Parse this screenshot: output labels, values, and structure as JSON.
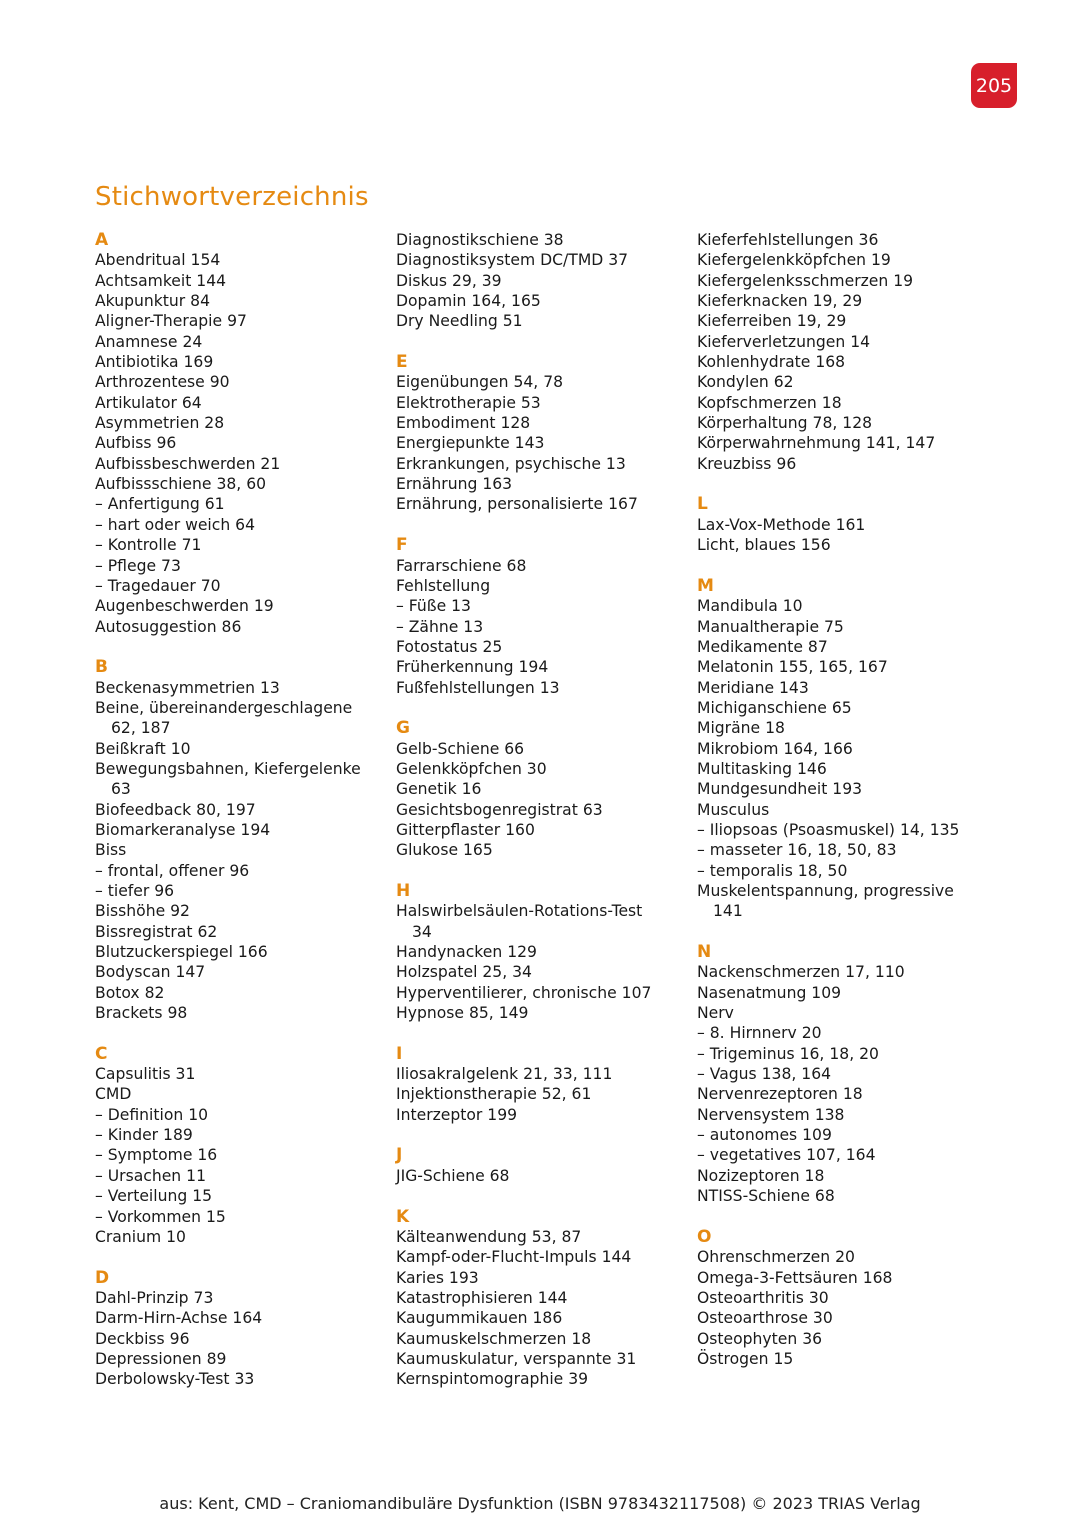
{
  "page_number": "205",
  "title": "Stichwortverzeichnis",
  "colors": {
    "accent": "#e58a12",
    "badge": "#d71f2b"
  },
  "columns": [
    [
      {
        "letter": "A",
        "entries": [
          {
            "t": "Abendritual 154"
          },
          {
            "t": "Achtsamkeit 144"
          },
          {
            "t": "Akupunktur 84"
          },
          {
            "t": "Aligner-Therapie 97"
          },
          {
            "t": "Anamnese 24"
          },
          {
            "t": "Antibiotika 169"
          },
          {
            "t": "Arthrozentese 90"
          },
          {
            "t": "Artikulator 64"
          },
          {
            "t": "Asymmetrien 28"
          },
          {
            "t": "Aufbiss 96"
          },
          {
            "t": "Aufbissbeschwerden 21"
          },
          {
            "t": "Aufbissschiene 38, 60"
          },
          {
            "t": "– Anfertigung 61"
          },
          {
            "t": "– hart oder weich 64"
          },
          {
            "t": "– Kontrolle 71"
          },
          {
            "t": "– Pflege 73"
          },
          {
            "t": "– Tragedauer 70"
          },
          {
            "t": "Augenbeschwerden 19"
          },
          {
            "t": "Autosuggestion 86"
          }
        ]
      },
      {
        "letter": "B",
        "entries": [
          {
            "t": "Beckenasymmetrien 13"
          },
          {
            "t": "Beine, übereinandergeschlagene"
          },
          {
            "t": "62, 187",
            "c": true
          },
          {
            "t": "Beißkraft 10"
          },
          {
            "t": "Bewegungsbahnen, Kiefergelenke"
          },
          {
            "t": "63",
            "c": true
          },
          {
            "t": "Biofeedback 80, 197"
          },
          {
            "t": "Biomarkeranalyse 194"
          },
          {
            "t": "Biss"
          },
          {
            "t": "– frontal, offener 96"
          },
          {
            "t": "– tiefer 96"
          },
          {
            "t": "Bisshöhe 92"
          },
          {
            "t": "Bissregistrat 62"
          },
          {
            "t": "Blutzuckerspiegel 166"
          },
          {
            "t": "Bodyscan 147"
          },
          {
            "t": "Botox 82"
          },
          {
            "t": "Brackets 98"
          }
        ]
      },
      {
        "letter": "C",
        "entries": [
          {
            "t": "Capsulitis 31"
          },
          {
            "t": "CMD"
          },
          {
            "t": "– Definition 10"
          },
          {
            "t": "– Kinder 189"
          },
          {
            "t": "– Symptome 16"
          },
          {
            "t": "– Ursachen 11"
          },
          {
            "t": "– Verteilung 15"
          },
          {
            "t": "– Vorkommen 15"
          },
          {
            "t": "Cranium 10"
          }
        ]
      },
      {
        "letter": "D",
        "entries": [
          {
            "t": "Dahl-Prinzip 73"
          },
          {
            "t": "Darm-Hirn-Achse 164"
          },
          {
            "t": "Deckbiss 96"
          },
          {
            "t": "Depressionen 89"
          },
          {
            "t": "Derbolowsky-Test 33"
          }
        ]
      }
    ],
    [
      {
        "letter": null,
        "entries": [
          {
            "t": "Diagnostikschiene 38"
          },
          {
            "t": "Diagnostiksystem DC/TMD 37"
          },
          {
            "t": "Diskus 29, 39"
          },
          {
            "t": "Dopamin 164, 165"
          },
          {
            "t": "Dry Needling 51"
          }
        ]
      },
      {
        "letter": "E",
        "entries": [
          {
            "t": "Eigenübungen 54, 78"
          },
          {
            "t": "Elektrotherapie 53"
          },
          {
            "t": "Embodiment 128"
          },
          {
            "t": "Energiepunkte 143"
          },
          {
            "t": "Erkrankungen, psychische 13"
          },
          {
            "t": "Ernährung 163"
          },
          {
            "t": "Ernährung, personalisierte 167"
          }
        ]
      },
      {
        "letter": "F",
        "entries": [
          {
            "t": "Farrarschiene 68"
          },
          {
            "t": "Fehlstellung"
          },
          {
            "t": "– Füße 13"
          },
          {
            "t": "– Zähne 13"
          },
          {
            "t": "Fotostatus 25"
          },
          {
            "t": "Früherkennung 194"
          },
          {
            "t": "Fußfehlstellungen 13"
          }
        ]
      },
      {
        "letter": "G",
        "entries": [
          {
            "t": "Gelb-Schiene 66"
          },
          {
            "t": "Gelenkköpfchen 30"
          },
          {
            "t": "Genetik 16"
          },
          {
            "t": "Gesichtsbogenregistrat 63"
          },
          {
            "t": "Gitterpflaster 160"
          },
          {
            "t": "Glukose 165"
          }
        ]
      },
      {
        "letter": "H",
        "entries": [
          {
            "t": "Halswirbelsäulen-Rotations-Test"
          },
          {
            "t": "34",
            "c": true
          },
          {
            "t": "Handynacken 129"
          },
          {
            "t": "Holzspatel 25, 34"
          },
          {
            "t": "Hyperventilierer, chronische 107"
          },
          {
            "t": "Hypnose 85, 149"
          }
        ]
      },
      {
        "letter": "I",
        "entries": [
          {
            "t": "Iliosakralgelenk 21, 33, 111"
          },
          {
            "t": "Injektionstherapie 52, 61"
          },
          {
            "t": "Interzeptor 199"
          }
        ]
      },
      {
        "letter": "J",
        "entries": [
          {
            "t": "JIG-Schiene 68"
          }
        ]
      },
      {
        "letter": "K",
        "entries": [
          {
            "t": "Kälteanwendung 53, 87"
          },
          {
            "t": "Kampf-oder-Flucht-Impuls 144"
          },
          {
            "t": "Karies 193"
          },
          {
            "t": "Katastrophisieren 144"
          },
          {
            "t": "Kaugummikauen 186"
          },
          {
            "t": "Kaumuskelschmerzen 18"
          },
          {
            "t": "Kaumuskulatur, verspannte 31"
          },
          {
            "t": "Kernspintomographie 39"
          }
        ]
      }
    ],
    [
      {
        "letter": null,
        "entries": [
          {
            "t": "Kieferfehlstellungen 36"
          },
          {
            "t": "Kiefergelenkköpfchen 19"
          },
          {
            "t": "Kiefergelenksschmerzen 19"
          },
          {
            "t": "Kieferknacken 19, 29"
          },
          {
            "t": "Kieferreiben 19, 29"
          },
          {
            "t": "Kieferverletzungen 14"
          },
          {
            "t": "Kohlenhydrate 168"
          },
          {
            "t": "Kondylen 62"
          },
          {
            "t": "Kopfschmerzen 18"
          },
          {
            "t": "Körperhaltung 78, 128"
          },
          {
            "t": "Körperwahrnehmung 141, 147"
          },
          {
            "t": "Kreuzbiss 96"
          }
        ]
      },
      {
        "letter": "L",
        "entries": [
          {
            "t": "Lax-Vox-Methode 161"
          },
          {
            "t": "Licht, blaues 156"
          }
        ]
      },
      {
        "letter": "M",
        "entries": [
          {
            "t": "Mandibula 10"
          },
          {
            "t": "Manualtherapie 75"
          },
          {
            "t": "Medikamente 87"
          },
          {
            "t": "Melatonin 155, 165, 167"
          },
          {
            "t": "Meridiane 143"
          },
          {
            "t": "Michiganschiene 65"
          },
          {
            "t": "Migräne 18"
          },
          {
            "t": "Mikrobiom 164, 166"
          },
          {
            "t": "Multitasking 146"
          },
          {
            "t": "Mundgesundheit 193"
          },
          {
            "t": "Musculus"
          },
          {
            "t": "– Iliopsoas (Psoasmuskel) 14, 135"
          },
          {
            "t": "– masseter 16, 18, 50, 83"
          },
          {
            "t": "– temporalis 18, 50"
          },
          {
            "t": "Muskelentspannung, progressive"
          },
          {
            "t": "141",
            "c": true
          }
        ]
      },
      {
        "letter": "N",
        "entries": [
          {
            "t": "Nackenschmerzen 17, 110"
          },
          {
            "t": "Nasenatmung 109"
          },
          {
            "t": "Nerv"
          },
          {
            "t": "– 8. Hirnnerv 20"
          },
          {
            "t": "– Trigeminus 16, 18, 20"
          },
          {
            "t": "– Vagus 138, 164"
          },
          {
            "t": "Nervenrezeptoren 18"
          },
          {
            "t": "Nervensystem 138"
          },
          {
            "t": "– autonomes 109"
          },
          {
            "t": "– vegetatives 107, 164"
          },
          {
            "t": "Nozizeptoren 18"
          },
          {
            "t": "NTISS-Schiene 68"
          }
        ]
      },
      {
        "letter": "O",
        "entries": [
          {
            "t": "Ohrenschmerzen 20"
          },
          {
            "t": "Omega-3-Fettsäuren 168"
          },
          {
            "t": "Osteoarthritis 30"
          },
          {
            "t": "Osteoarthrose 30"
          },
          {
            "t": "Osteophyten 36"
          },
          {
            "t": "Östrogen 15"
          }
        ]
      }
    ]
  ],
  "footer": "aus: Kent, CMD – Craniomandibuläre Dysfunktion (ISBN 9783432117508) © 2023 TRIAS Verlag"
}
